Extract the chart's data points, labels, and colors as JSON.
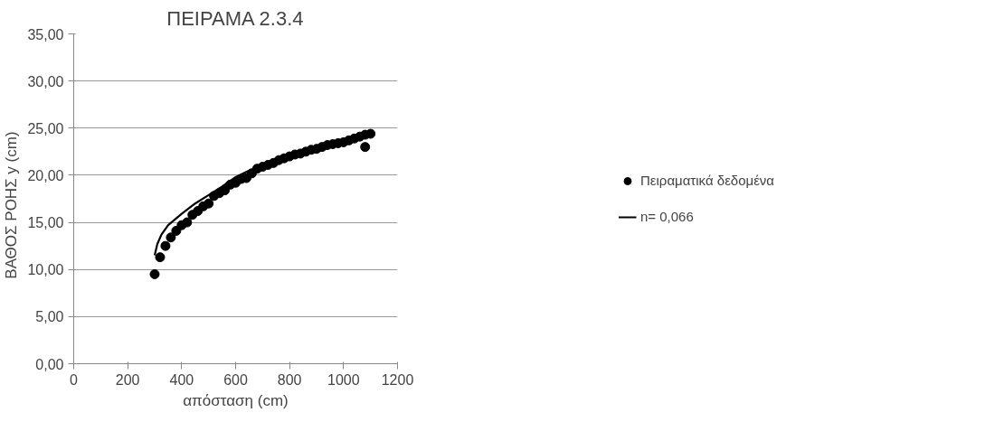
{
  "chart_data": {
    "type": "scatter",
    "title": "ΠΕΙΡΑΜΑ 2.3.4",
    "xlabel": "απόσταση (cm)",
    "ylabel": "ΒΑΘΟΣ  ΡΟΗΣ   y (cm)",
    "xlim": [
      0,
      1200
    ],
    "xticks": [
      0,
      200,
      400,
      600,
      800,
      1000,
      1200
    ],
    "ylim": [
      0,
      35
    ],
    "yticks": [
      {
        "value": 0,
        "label": "0,00"
      },
      {
        "value": 5,
        "label": "5,00"
      },
      {
        "value": 10,
        "label": "10,00"
      },
      {
        "value": 15,
        "label": "15,00"
      },
      {
        "value": 20,
        "label": "20,00"
      },
      {
        "value": 25,
        "label": "25,00"
      },
      {
        "value": 30,
        "label": "30,00"
      },
      {
        "value": 35,
        "label": "35,00"
      }
    ],
    "grid": "y",
    "legend": "right",
    "series": [
      {
        "name": "Πειραματικά δεδομένα",
        "marker": "circle",
        "color": "#000000",
        "x": [
          300,
          320,
          340,
          360,
          380,
          400,
          420,
          440,
          460,
          480,
          500,
          520,
          540,
          560,
          580,
          600,
          620,
          640,
          660,
          680,
          700,
          720,
          740,
          760,
          780,
          800,
          820,
          840,
          860,
          880,
          900,
          920,
          940,
          960,
          980,
          1000,
          1020,
          1040,
          1060,
          1080,
          1080,
          1100
        ],
        "values": [
          9.5,
          11.3,
          12.5,
          13.4,
          14.1,
          14.7,
          15.0,
          15.8,
          16.2,
          16.7,
          17.0,
          17.8,
          18.1,
          18.4,
          19.0,
          19.2,
          19.6,
          19.7,
          20.2,
          20.7,
          20.9,
          21.1,
          21.3,
          21.6,
          21.8,
          22.0,
          22.2,
          22.3,
          22.5,
          22.7,
          22.8,
          23.0,
          23.2,
          23.3,
          23.4,
          23.5,
          23.7,
          23.9,
          24.1,
          24.3,
          23.0,
          24.4
        ]
      },
      {
        "name": "n= 0,066",
        "type": "line",
        "marker": "none",
        "line_style": "solid",
        "color": "#000000",
        "x": [
          300,
          310,
          325,
          350,
          400,
          450,
          500,
          550,
          600,
          650,
          700,
          800,
          900,
          1000,
          1100
        ],
        "values": [
          11.5,
          12.7,
          13.7,
          14.7,
          15.9,
          17.0,
          17.9,
          18.8,
          19.8,
          20.5,
          21.0,
          22.0,
          22.9,
          23.6,
          24.4
        ]
      }
    ]
  }
}
